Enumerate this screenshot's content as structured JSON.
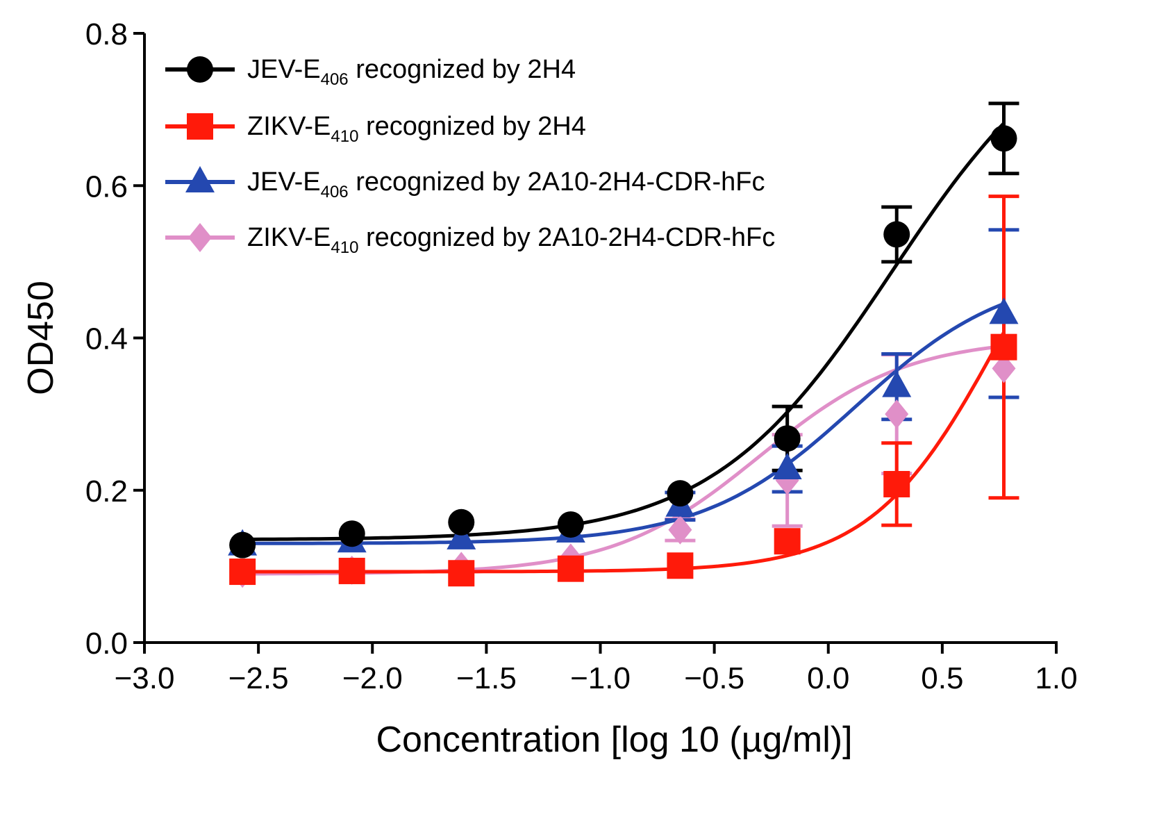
{
  "chart_data": {
    "type": "scatter",
    "title": "",
    "xlabel": "Concentration [log 10 (µg/ml)]",
    "ylabel": "OD450",
    "xlim": [
      -3.0,
      1.0
    ],
    "ylim": [
      0.0,
      0.8
    ],
    "x_ticks": [
      -3.0,
      -2.5,
      -2.0,
      -1.5,
      -1.0,
      -0.5,
      0.0,
      0.5,
      1.0
    ],
    "x_tick_labels": [
      "−3.0",
      "−2.5",
      "−2.0",
      "−1.5",
      "−1.0",
      "−0.5",
      "0.0",
      "0.5",
      "1.0"
    ],
    "y_ticks": [
      0.0,
      0.2,
      0.4,
      0.6,
      0.8
    ],
    "y_tick_labels": [
      "0.0",
      "0.2",
      "0.4",
      "0.6",
      "0.8"
    ],
    "legend_position": "top-left",
    "x": [
      -2.57,
      -2.09,
      -1.61,
      -1.13,
      -0.65,
      -0.18,
      0.3,
      0.77
    ],
    "series": [
      {
        "name": "JEV-E406 recognized by 2H4",
        "legend_main": "JEV-E",
        "legend_sub": "406",
        "legend_rest": " recognized by 2H4",
        "color": "#000000",
        "marker": "circle",
        "values": [
          0.128,
          0.143,
          0.158,
          0.155,
          0.196,
          0.268,
          0.536,
          0.662
        ],
        "errors": [
          0,
          0,
          0,
          0,
          0,
          0.042,
          0.036,
          0.046
        ],
        "fit": {
          "bottom": 0.135,
          "top": 0.84,
          "logec50": 0.28,
          "hill": 1.1
        }
      },
      {
        "name": "ZIKV-E410 recognized by 2H4",
        "legend_main": "ZIKV-E",
        "legend_sub": "410",
        "legend_rest": " recognized by 2H4",
        "color": "#ff1a0a",
        "marker": "square",
        "values": [
          0.093,
          0.094,
          0.091,
          0.097,
          0.101,
          0.133,
          0.208,
          0.388
        ],
        "errors": [
          0,
          0,
          0,
          0,
          0,
          0,
          0.054,
          0.198
        ],
        "fit": {
          "bottom": 0.093,
          "top": 0.7,
          "logec50": 0.75,
          "hill": 1.55
        }
      },
      {
        "name": "JEV-E406 recognized by 2A10-2H4-CDR-hFc",
        "legend_main": "JEV-E",
        "legend_sub": "406",
        "legend_rest": " recognized by 2A10-2H4-CDR-hFc",
        "color": "#2448b0",
        "marker": "triangle",
        "values": [
          0.128,
          0.132,
          0.136,
          0.145,
          0.179,
          0.228,
          0.336,
          0.432
        ],
        "errors": [
          0,
          0,
          0,
          0,
          0.018,
          0.03,
          0.043,
          0.11
        ],
        "fit": {
          "bottom": 0.13,
          "top": 0.49,
          "logec50": 0.12,
          "hill": 1.3
        }
      },
      {
        "name": "ZIKV-E410 recognized by 2A10-2H4-CDR-hFc",
        "legend_main": "ZIKV-E",
        "legend_sub": "410",
        "legend_rest": " recognized by 2A10-2H4-CDR-hFc",
        "color": "#e08fc8",
        "marker": "diamond",
        "values": [
          0.091,
          0.095,
          0.1,
          0.111,
          0.148,
          0.213,
          0.3,
          0.36
        ],
        "errors": [
          0,
          0,
          0,
          0,
          0.014,
          0.06,
          0.078,
          0
        ],
        "fit": {
          "bottom": 0.09,
          "top": 0.4,
          "logec50": -0.3,
          "hill": 1.35
        }
      }
    ]
  }
}
